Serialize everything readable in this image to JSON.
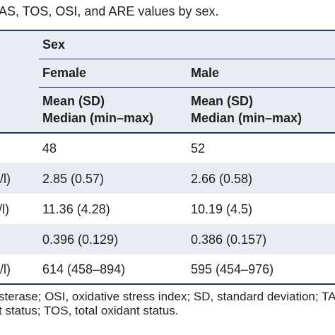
{
  "caption": "AS, TOS, OSI, and ARE values by sex.",
  "header": {
    "group": "Sex",
    "columns": [
      "Female",
      "Male"
    ],
    "stat_line1": "Mean (SD)",
    "stat_line2": "Median (min–max)"
  },
  "rows": [
    {
      "label": "",
      "female": "48",
      "male": "52"
    },
    {
      "label": "l/l)",
      "female": "2.85 (0.57)",
      "male": "2.66 (0.58)"
    },
    {
      "label": "/l)",
      "female": "11.36 (4.28)",
      "male": "10.19 (4.5)"
    },
    {
      "label": "",
      "female": "0.396 (0.129)",
      "male": "0.386 (0.157)"
    },
    {
      "label": "l/l)",
      "female": "614 (458–894)",
      "male": "595 (454–976)"
    }
  ],
  "footnote": {
    "line1": "sterase; OSI, oxidative stress index; SD, standard deviation; TA",
    "line2": "t status; TOS, total oxidant status."
  }
}
